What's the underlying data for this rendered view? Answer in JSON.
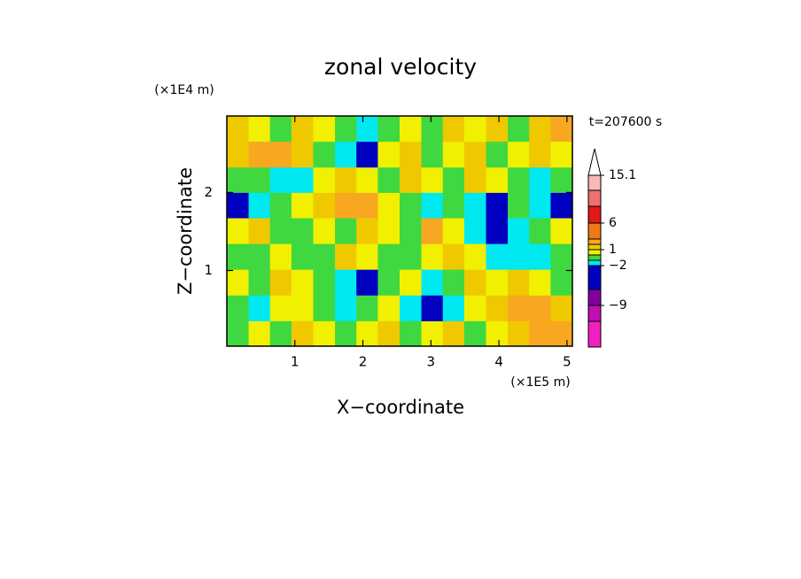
{
  "chart_data": {
    "type": "contour",
    "title": "zonal velocity",
    "x_axis_label": "X−coordinate",
    "y_axis_label": "Z−coordinate",
    "x_unit_label": "(×1E5 m)",
    "y_unit_label": "(×1E4 m)",
    "time_label": "t=207600 s",
    "xlim": [
      0,
      5.08
    ],
    "ylim": [
      0.03,
      2.98
    ],
    "xticks": [
      1,
      2,
      3,
      4,
      5
    ],
    "yticks": [
      1,
      2
    ],
    "x": [
      0.16,
      0.48,
      0.79,
      1.11,
      1.43,
      1.75,
      2.06,
      2.38,
      2.7,
      3.02,
      3.33,
      3.65,
      3.97,
      4.29,
      4.6,
      4.92
    ],
    "z": [
      0.19,
      0.52,
      0.85,
      1.18,
      1.51,
      1.84,
      2.16,
      2.49,
      2.82
    ],
    "values": [
      [
        -0.5,
        0.5,
        -0.5,
        1.5,
        0.5,
        -0.5,
        0.5,
        1.5,
        -0.5,
        0.5,
        1.5,
        -0.5,
        0.5,
        1.5,
        2.5,
        2.5
      ],
      [
        -0.5,
        -1.5,
        0.5,
        0.5,
        -0.5,
        -1.5,
        -0.5,
        0.5,
        -1.5,
        -3,
        -1.5,
        0.5,
        1.5,
        2.5,
        2.5,
        1.5
      ],
      [
        0.5,
        -0.5,
        1.5,
        0.5,
        -0.5,
        -1.5,
        -3,
        -0.5,
        0.5,
        -1.5,
        -0.5,
        1.5,
        0.5,
        1.5,
        0.5,
        -0.5
      ],
      [
        -0.5,
        -0.5,
        0.5,
        -0.5,
        -0.5,
        1.5,
        0.5,
        -0.5,
        -0.5,
        0.5,
        1.5,
        0.5,
        -1.5,
        -1.5,
        -1.5,
        -0.5
      ],
      [
        0.5,
        1.5,
        -0.5,
        -0.5,
        0.5,
        -0.5,
        1.5,
        0.5,
        -0.5,
        2.5,
        0.5,
        -1.5,
        -3,
        -1.5,
        -0.5,
        0.5
      ],
      [
        -3,
        -1.5,
        -0.5,
        0.5,
        1.5,
        2.5,
        2.5,
        0.5,
        -0.5,
        -1.5,
        -0.5,
        -1.5,
        -3,
        -0.5,
        -1.5,
        -3
      ],
      [
        -0.5,
        -0.5,
        -1.5,
        -1.5,
        0.5,
        1.5,
        0.5,
        -0.5,
        1.5,
        0.5,
        -0.5,
        1.5,
        0.5,
        -0.5,
        -1.5,
        -0.5
      ],
      [
        1.5,
        2.5,
        2.5,
        1.5,
        -0.5,
        -1.5,
        -3,
        0.5,
        1.5,
        -0.5,
        0.5,
        1.5,
        -0.5,
        0.5,
        1.5,
        0.5
      ],
      [
        1.5,
        0.5,
        -0.5,
        1.5,
        0.5,
        -0.5,
        -1.5,
        -0.5,
        0.5,
        -0.5,
        1.5,
        0.5,
        1.5,
        -0.5,
        1.5,
        2.5
      ]
    ],
    "levels": [
      -12,
      -9,
      -5,
      -2,
      -1,
      0,
      1,
      2,
      3,
      6,
      9,
      12,
      15.1
    ],
    "colors": [
      "#f020c0",
      "#c010b0",
      "#8000a0",
      "#0000c0",
      "#00e8f0",
      "#40d840",
      "#f0f000",
      "#f0c800",
      "#f8a820",
      "#f07818",
      "#e01818",
      "#f07070",
      "#f8b8b8",
      "#ffffff"
    ],
    "colorbar_ticks": [
      15.1,
      6,
      1,
      {
        "value": -2,
        "label": "−2"
      },
      {
        "value": -9,
        "label": "−9"
      }
    ]
  }
}
